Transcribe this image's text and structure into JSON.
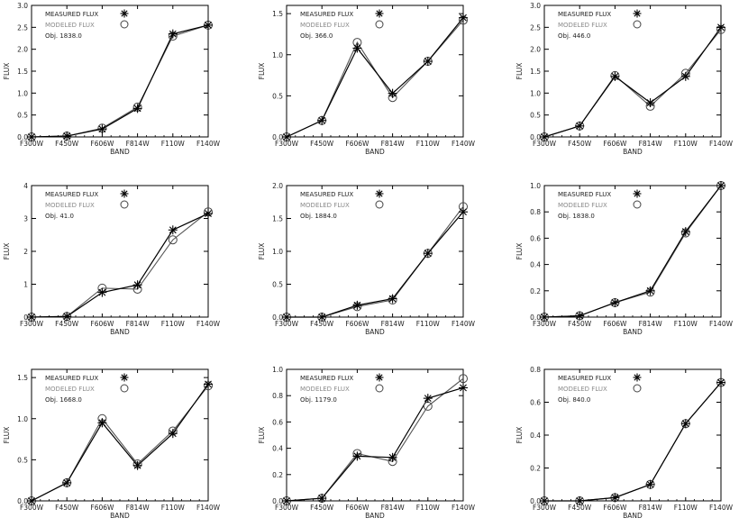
{
  "legend": {
    "measured_label": "MEASURED FLUX",
    "modeled_label": "MODELED FLUX",
    "measured_color": "#000000",
    "modeled_color": "#8a8a8a",
    "measured_marker": "asterisk",
    "modeled_marker": "circle"
  },
  "chart_data": [
    {
      "type": "line",
      "categories": [
        "F300W",
        "F450W",
        "F606W",
        "F814W",
        "F110W",
        "F140W"
      ],
      "xlabel": "BAND",
      "ylabel": "FLUX",
      "ylim": [
        0,
        3.0
      ],
      "yticks": [
        "0.0",
        "0.5",
        "1.0",
        "1.5",
        "2.0",
        "2.5",
        "3.0"
      ],
      "ytick_values": [
        0,
        0.5,
        1,
        1.5,
        2,
        2.5,
        3
      ],
      "object_label": "Obj. 1838.0",
      "series": [
        {
          "name": "MEASURED FLUX",
          "values": [
            0.0,
            0.02,
            0.18,
            0.65,
            2.35,
            2.55
          ]
        },
        {
          "name": "MODELED FLUX",
          "values": [
            0.0,
            0.02,
            0.2,
            0.68,
            2.3,
            2.55
          ]
        }
      ]
    },
    {
      "type": "line",
      "categories": [
        "F300W",
        "F450W",
        "F606W",
        "F814W",
        "F110W",
        "F140W"
      ],
      "xlabel": "BAND",
      "ylabel": "FLUX",
      "ylim": [
        0,
        1.6
      ],
      "yticks": [
        "0.0",
        "0.5",
        "1.0",
        "1.5"
      ],
      "ytick_values": [
        0,
        0.5,
        1,
        1.5
      ],
      "object_label": "Obj. 366.0",
      "series": [
        {
          "name": "MEASURED FLUX",
          "values": [
            0.0,
            0.2,
            1.08,
            0.53,
            0.92,
            1.45
          ]
        },
        {
          "name": "MODELED FLUX",
          "values": [
            0.0,
            0.2,
            1.15,
            0.48,
            0.92,
            1.42
          ]
        }
      ]
    },
    {
      "type": "line",
      "categories": [
        "F300W",
        "F450W",
        "F606W",
        "F814W",
        "F110W",
        "F140W"
      ],
      "xlabel": "BAND",
      "ylabel": "FLUX",
      "ylim": [
        0,
        3.0
      ],
      "yticks": [
        "0.0",
        "0.5",
        "1.0",
        "1.5",
        "2.0",
        "2.5",
        "3.0"
      ],
      "ytick_values": [
        0,
        0.5,
        1,
        1.5,
        2,
        2.5,
        3
      ],
      "object_label": "Obj. 446.0",
      "series": [
        {
          "name": "MEASURED FLUX",
          "values": [
            0.0,
            0.25,
            1.38,
            0.78,
            1.38,
            2.5
          ]
        },
        {
          "name": "MODELED FLUX",
          "values": [
            0.0,
            0.25,
            1.4,
            0.7,
            1.45,
            2.45
          ]
        }
      ]
    },
    {
      "type": "line",
      "categories": [
        "F300W",
        "F450W",
        "F606W",
        "F814W",
        "F110W",
        "F140W"
      ],
      "xlabel": "BAND",
      "ylabel": "FLUX",
      "ylim": [
        0,
        4
      ],
      "yticks": [
        "0",
        "1",
        "2",
        "3",
        "4"
      ],
      "ytick_values": [
        0,
        1,
        2,
        3,
        4
      ],
      "object_label": "Obj. 41.0",
      "series": [
        {
          "name": "MEASURED FLUX",
          "values": [
            0.0,
            0.02,
            0.75,
            0.98,
            2.65,
            3.15
          ]
        },
        {
          "name": "MODELED FLUX",
          "values": [
            0.0,
            0.02,
            0.88,
            0.85,
            2.35,
            3.2
          ]
        }
      ]
    },
    {
      "type": "line",
      "categories": [
        "F300W",
        "F450W",
        "F606W",
        "F814W",
        "F110W",
        "F140W"
      ],
      "xlabel": "BAND",
      "ylabel": "FLUX",
      "ylim": [
        0,
        2.0
      ],
      "yticks": [
        "0.0",
        "0.5",
        "1.0",
        "1.5",
        "2.0"
      ],
      "ytick_values": [
        0,
        0.5,
        1,
        1.5,
        2
      ],
      "object_label": "Obj. 1884.0",
      "series": [
        {
          "name": "MEASURED FLUX",
          "values": [
            0.0,
            0.0,
            0.18,
            0.28,
            0.97,
            1.6
          ]
        },
        {
          "name": "MODELED FLUX",
          "values": [
            0.0,
            0.0,
            0.16,
            0.26,
            0.97,
            1.68
          ]
        }
      ]
    },
    {
      "type": "line",
      "categories": [
        "F300W",
        "F450W",
        "F606W",
        "F814W",
        "F110W",
        "F140W"
      ],
      "xlabel": "BAND",
      "ylabel": "FLUX",
      "ylim": [
        0,
        1.0
      ],
      "yticks": [
        "0.0",
        "0.2",
        "0.4",
        "0.6",
        "0.8",
        "1.0"
      ],
      "ytick_values": [
        0,
        0.2,
        0.4,
        0.6,
        0.8,
        1.0
      ],
      "object_label": "Obj. 1838.0",
      "series": [
        {
          "name": "MEASURED FLUX",
          "values": [
            0.0,
            0.01,
            0.11,
            0.2,
            0.65,
            1.0
          ]
        },
        {
          "name": "MODELED FLUX",
          "values": [
            0.0,
            0.01,
            0.11,
            0.19,
            0.64,
            1.0
          ]
        }
      ]
    },
    {
      "type": "line",
      "categories": [
        "F300W",
        "F450W",
        "F606W",
        "F814W",
        "F110W",
        "F140W"
      ],
      "xlabel": "BAND",
      "ylabel": "FLUX",
      "ylim": [
        0,
        1.6
      ],
      "yticks": [
        "0.0",
        "0.5",
        "1.0",
        "1.5"
      ],
      "ytick_values": [
        0,
        0.5,
        1,
        1.5
      ],
      "object_label": "Obj. 1668.0",
      "series": [
        {
          "name": "MEASURED FLUX",
          "values": [
            0.0,
            0.22,
            0.95,
            0.43,
            0.82,
            1.42
          ]
        },
        {
          "name": "MODELED FLUX",
          "values": [
            0.0,
            0.22,
            1.0,
            0.45,
            0.85,
            1.4
          ]
        }
      ]
    },
    {
      "type": "line",
      "categories": [
        "F300W",
        "F450W",
        "F606W",
        "F814W",
        "F110W",
        "F140W"
      ],
      "xlabel": "BAND",
      "ylabel": "FLUX",
      "ylim": [
        0,
        1.0
      ],
      "yticks": [
        "0.0",
        "0.2",
        "0.4",
        "0.6",
        "0.8",
        "1.0"
      ],
      "ytick_values": [
        0,
        0.2,
        0.4,
        0.6,
        0.8,
        1.0
      ],
      "object_label": "Obj. 1179.0",
      "series": [
        {
          "name": "MEASURED FLUX",
          "values": [
            0.0,
            0.02,
            0.34,
            0.33,
            0.78,
            0.86
          ]
        },
        {
          "name": "MODELED FLUX",
          "values": [
            0.0,
            0.02,
            0.36,
            0.3,
            0.72,
            0.93
          ]
        }
      ]
    },
    {
      "type": "line",
      "categories": [
        "F300W",
        "F450W",
        "F606W",
        "F814W",
        "F110W",
        "F140W"
      ],
      "xlabel": "BAND",
      "ylabel": "FLUX",
      "ylim": [
        0,
        0.8
      ],
      "yticks": [
        "0.0",
        "0.2",
        "0.4",
        "0.6",
        "0.8"
      ],
      "ytick_values": [
        0,
        0.2,
        0.4,
        0.6,
        0.8
      ],
      "object_label": "Obj. 840.0",
      "series": [
        {
          "name": "MEASURED FLUX",
          "values": [
            0.0,
            0.0,
            0.02,
            0.1,
            0.47,
            0.72
          ]
        },
        {
          "name": "MODELED FLUX",
          "values": [
            0.0,
            0.0,
            0.02,
            0.1,
            0.47,
            0.72
          ]
        }
      ]
    }
  ]
}
